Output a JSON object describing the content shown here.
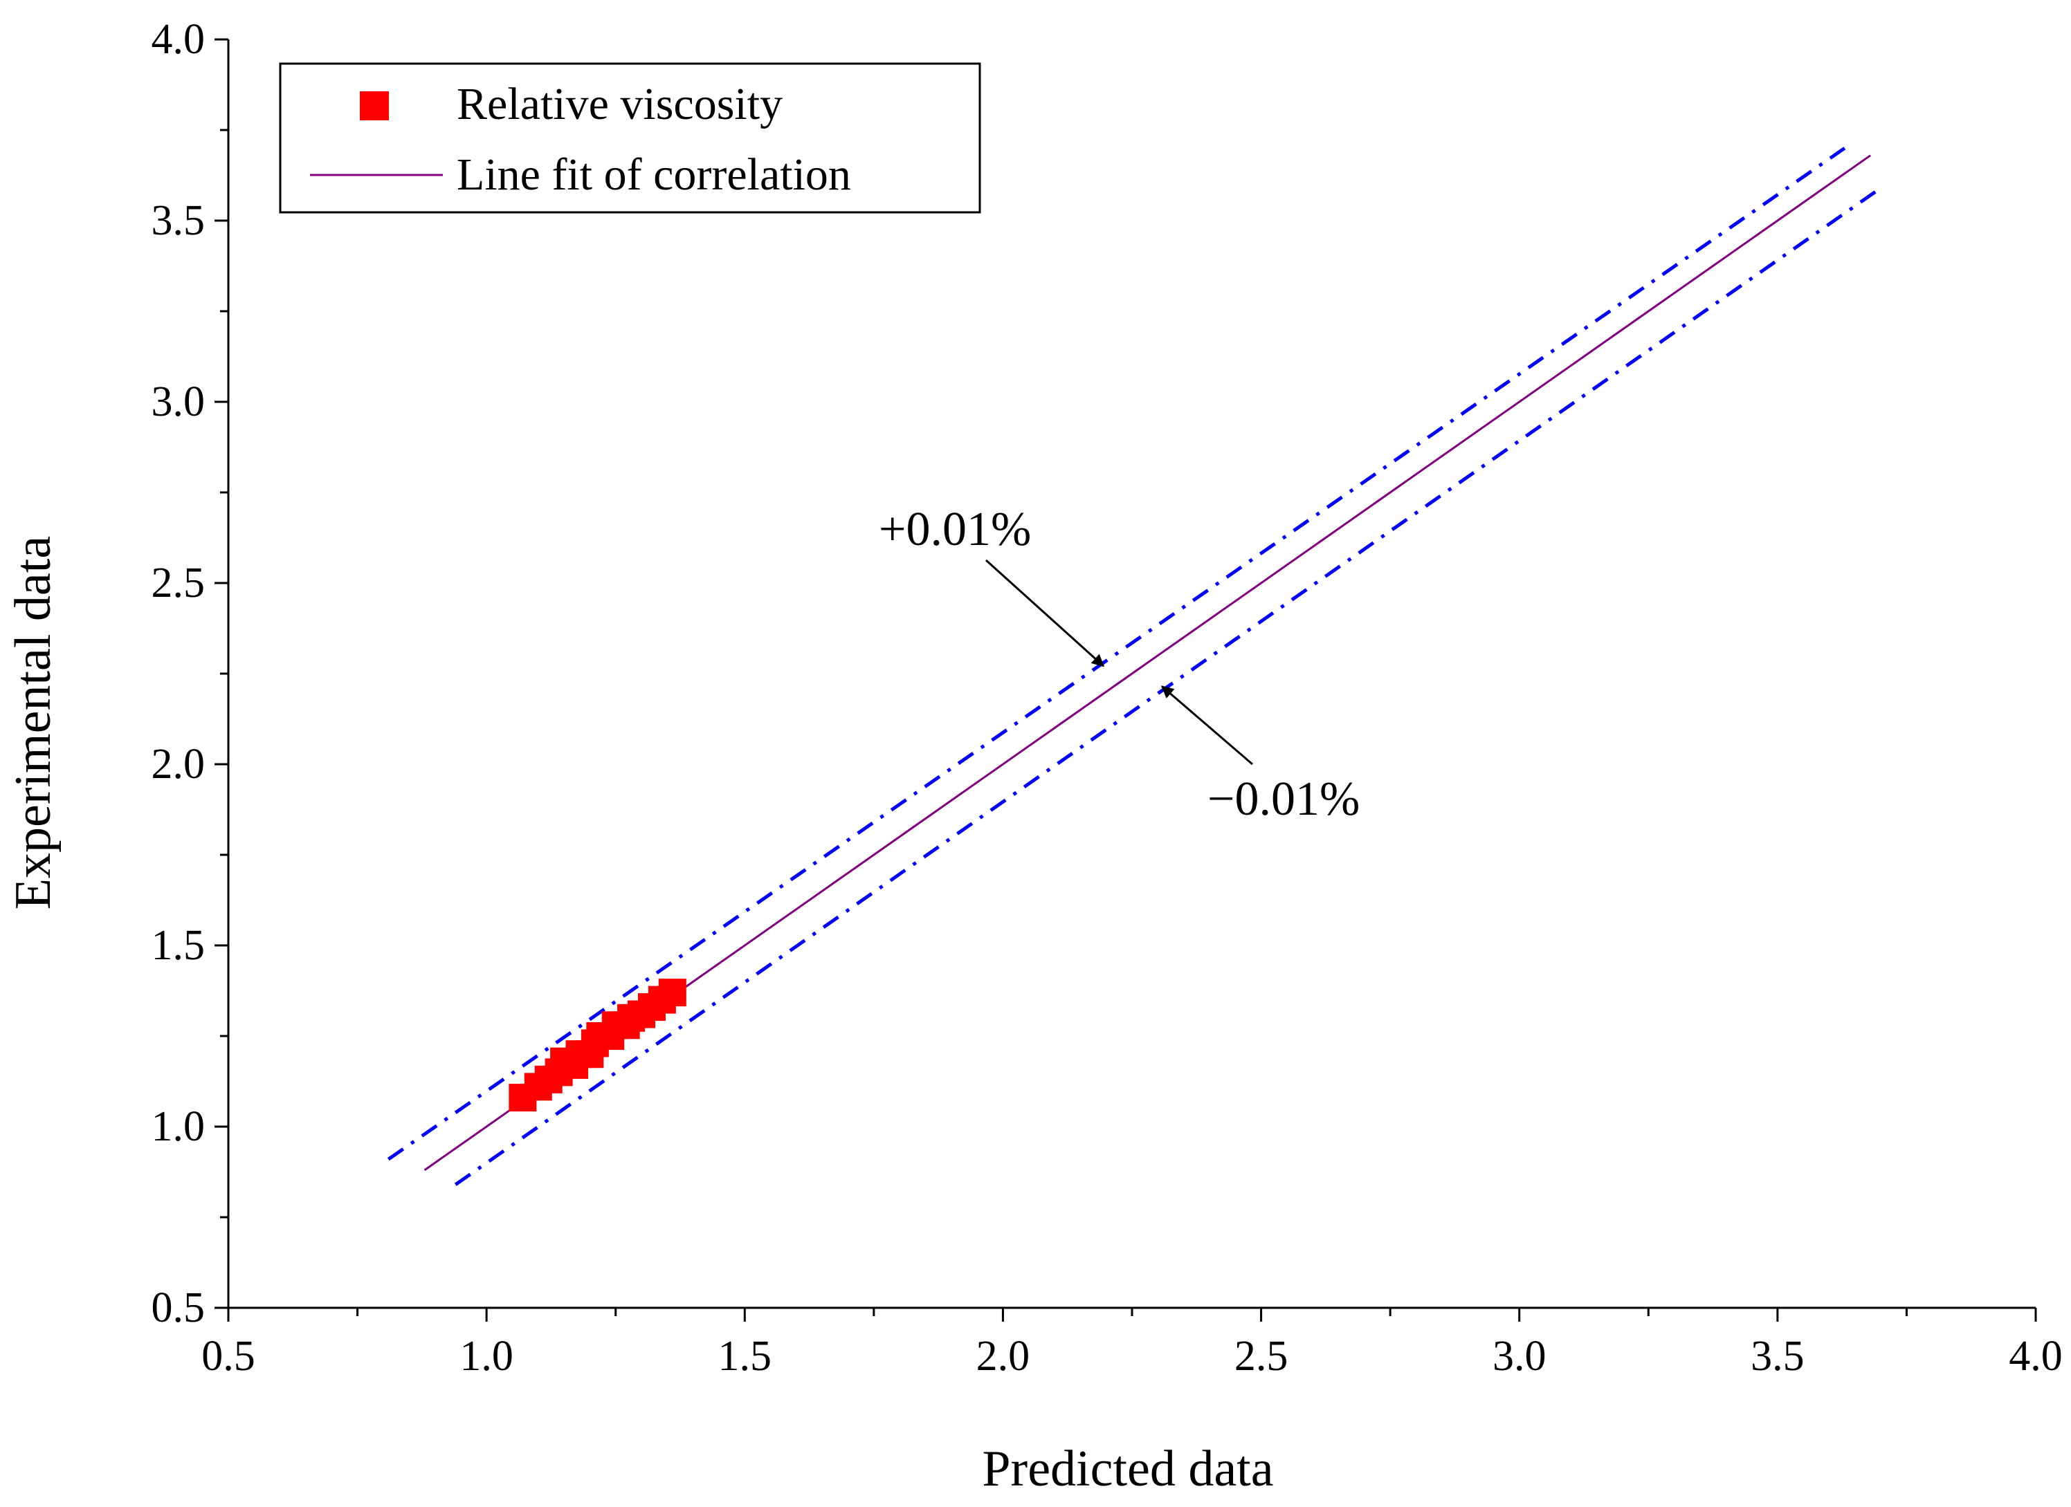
{
  "chart_data": {
    "type": "scatter",
    "title": "",
    "xlabel": "Predicted data",
    "ylabel": "Experimental data",
    "xlim": [
      0.5,
      4.0
    ],
    "ylim": [
      0.5,
      4.0
    ],
    "xticks": [
      "0.5",
      "1.0",
      "1.5",
      "2.0",
      "2.5",
      "3.0",
      "3.5",
      "4.0"
    ],
    "yticks": [
      "0.5",
      "1.0",
      "1.5",
      "2.0",
      "2.5",
      "3.0",
      "3.5",
      "4.0"
    ],
    "grid": false,
    "legend_position": "top-left",
    "series": [
      {
        "name": "Relative viscosity",
        "kind": "scatter",
        "marker": "square",
        "color": "#ff0000",
        "x": [
          1.07,
          1.1,
          1.12,
          1.14,
          1.15,
          1.17,
          1.18,
          1.2,
          1.21,
          1.22,
          1.24,
          1.25,
          1.27,
          1.28,
          1.3,
          1.32,
          1.34,
          1.36
        ],
        "y": [
          1.08,
          1.11,
          1.13,
          1.15,
          1.18,
          1.17,
          1.2,
          1.2,
          1.23,
          1.25,
          1.25,
          1.28,
          1.28,
          1.3,
          1.31,
          1.33,
          1.35,
          1.37
        ]
      },
      {
        "name": "Line fit of correlation",
        "kind": "line",
        "style": "solid",
        "color": "#800080",
        "x": [
          0.88,
          3.68
        ],
        "y": [
          0.88,
          3.68
        ]
      },
      {
        "name": "+0.01%",
        "kind": "line",
        "style": "dash-dot",
        "color": "#0000ff",
        "x": [
          0.81,
          3.63
        ],
        "y": [
          0.91,
          3.7
        ]
      },
      {
        "name": "-0.01%",
        "kind": "line",
        "style": "dash-dot",
        "color": "#0000ff",
        "x": [
          0.94,
          3.7
        ],
        "y": [
          0.84,
          3.59
        ]
      }
    ],
    "annotations": [
      {
        "text": "+0.01%",
        "arrow_to": [
          2.2,
          2.29
        ]
      },
      {
        "text": "−0.01%",
        "arrow_to": [
          2.3,
          2.23
        ]
      }
    ]
  }
}
